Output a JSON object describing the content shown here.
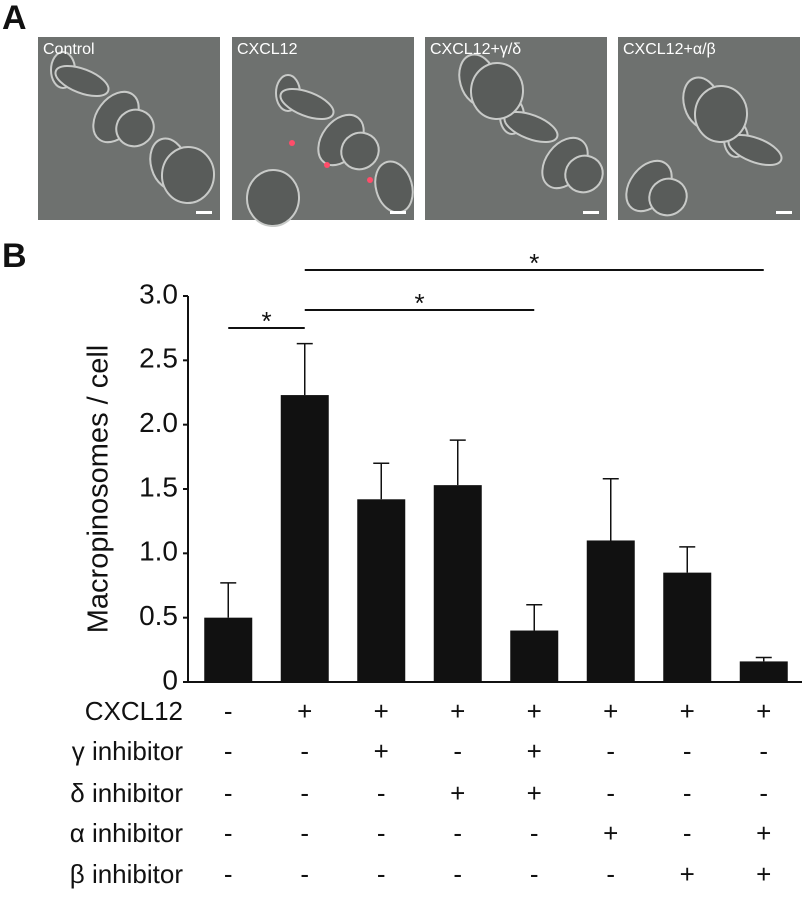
{
  "panels": [
    {
      "letter": "A",
      "images": [
        "Control",
        "CXCL12",
        "CXCL12+γ/δ",
        "CXCL12+α/β"
      ]
    }
  ],
  "chart_data": {
    "type": "bar",
    "panel_letter": "B",
    "y_label": "Macropinosomes / cell",
    "categories": [
      null,
      null,
      null,
      null,
      null,
      null,
      null,
      null
    ],
    "values": [
      0.5,
      2.23,
      1.42,
      1.53,
      0.4,
      1.1,
      0.85,
      0.16
    ],
    "errors": [
      0.27,
      0.4,
      0.28,
      0.35,
      0.2,
      0.48,
      0.2,
      0.03
    ],
    "color": "#111111",
    "ylim": [
      0,
      3
    ],
    "yticks": [
      0,
      0.5,
      {
        "value": 1,
        "label": "1.0"
      },
      1.5,
      {
        "value": 2,
        "label": "2.0"
      },
      2.5,
      {
        "value": 3,
        "label": "3.0"
      }
    ],
    "annotations": [
      {
        "text": "*",
        "from": 0,
        "to": 1
      },
      {
        "text": "*",
        "from": 1,
        "to": 4
      },
      {
        "text": "*",
        "from": 1,
        "to": 7
      }
    ],
    "conditions": [
      {
        "label": "CXCL12",
        "values": [
          "-",
          "+",
          "+",
          "+",
          "+",
          "+",
          "+",
          "+"
        ]
      },
      {
        "label": "γ inhibitor",
        "values": [
          "-",
          "-",
          "+",
          "-",
          "+",
          "-",
          "-",
          "-"
        ]
      },
      {
        "label": "δ inhibitor",
        "values": [
          "-",
          "-",
          "-",
          "+",
          "+",
          "-",
          "-",
          "-"
        ]
      },
      {
        "label": "α inhibitor",
        "values": [
          "-",
          "-",
          "-",
          "-",
          "-",
          "+",
          "-",
          "+"
        ]
      },
      {
        "label": "β inhibitor",
        "values": [
          "-",
          "-",
          "-",
          "-",
          "-",
          "-",
          "+",
          "+"
        ]
      }
    ]
  }
}
